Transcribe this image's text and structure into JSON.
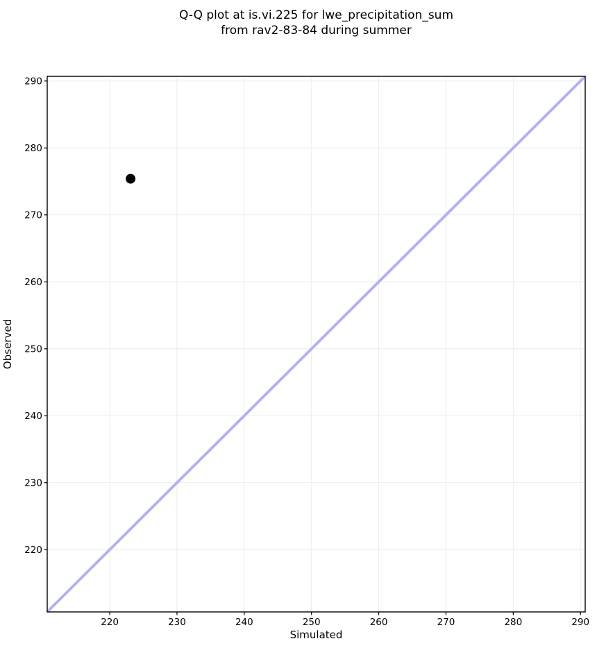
{
  "chart_data": {
    "type": "scatter",
    "title": "Q-Q plot at is.vi.225 for lwe_precipitation_sum\nfrom rav2-83-84 during summer",
    "title_lines": [
      "Q-Q plot at is.vi.225 for lwe_precipitation_sum",
      "from rav2-83-84 during summer"
    ],
    "xlabel": "Simulated",
    "ylabel": "Observed",
    "xlim": [
      210.7,
      290.7
    ],
    "ylim": [
      210.7,
      290.7
    ],
    "xticks": [
      220,
      230,
      240,
      250,
      260,
      270,
      280,
      290
    ],
    "yticks": [
      220,
      230,
      240,
      250,
      260,
      270,
      280,
      290
    ],
    "grid": true,
    "legend": false,
    "series": [
      {
        "name": "identity-line",
        "type": "line",
        "color": "#b2b2f0",
        "width": 4,
        "points": [
          [
            210.7,
            210.7
          ],
          [
            290.7,
            290.7
          ]
        ]
      },
      {
        "name": "qq-points",
        "type": "scatter",
        "color": "#000000",
        "marker": "circle",
        "marker_radius": 7,
        "points": [
          [
            223.1,
            275.4
          ]
        ]
      }
    ]
  },
  "colors": {
    "background": "#ffffff",
    "grid": "#ececec",
    "spine": "#000000",
    "identity_line": "#b2b2f0",
    "marker": "#000000",
    "text": "#000000"
  }
}
